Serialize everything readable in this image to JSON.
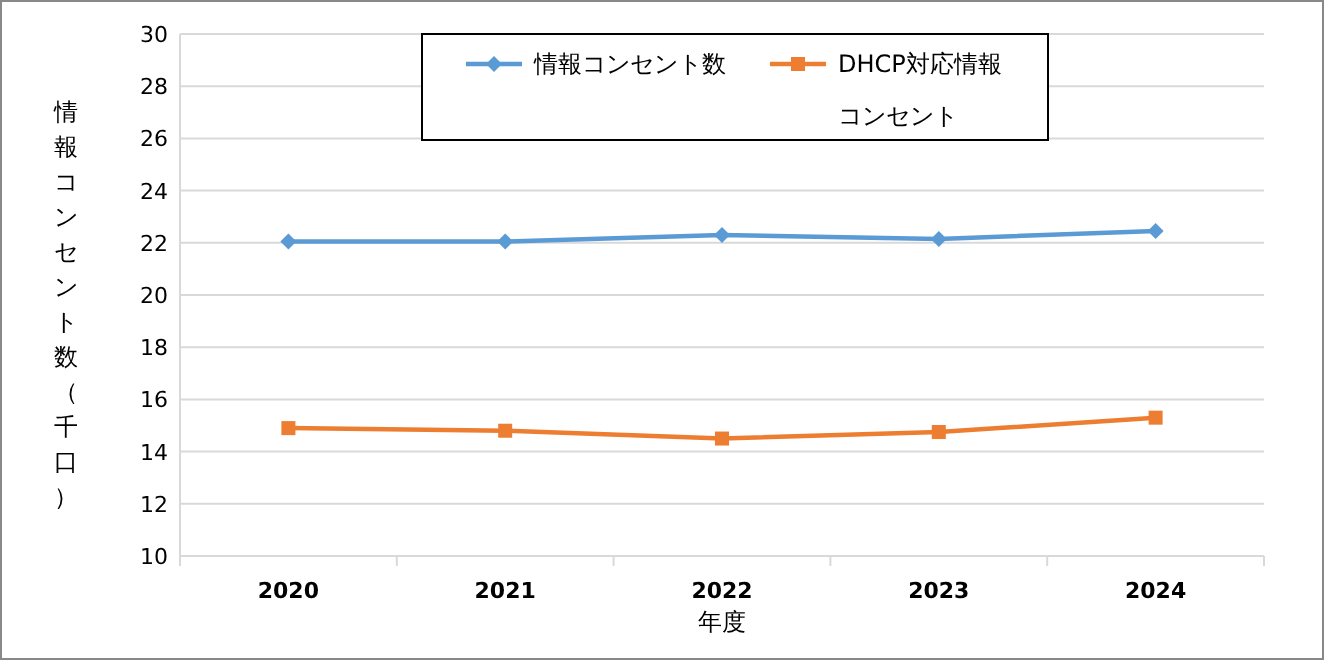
{
  "chart_data": {
    "type": "line",
    "xlabel": "年度",
    "ylabel": "情報コンセント数（千口）",
    "categories": [
      "2020",
      "2021",
      "2022",
      "2023",
      "2024"
    ],
    "series": [
      {
        "name": "情報コンセント数",
        "color": "#5b9bd5",
        "marker": "diamond",
        "values": [
          22.05,
          22.05,
          22.3,
          22.15,
          22.45
        ]
      },
      {
        "name": "DHCP対応情報コンセント",
        "color": "#ed7d31",
        "marker": "square",
        "values": [
          14.9,
          14.8,
          14.5,
          14.75,
          15.3
        ]
      }
    ],
    "ylim": [
      10,
      30
    ],
    "yticks": [
      10,
      12,
      14,
      16,
      18,
      20,
      22,
      24,
      26,
      28,
      30
    ],
    "grid": "y",
    "legend": "top",
    "line_style": "solid"
  }
}
